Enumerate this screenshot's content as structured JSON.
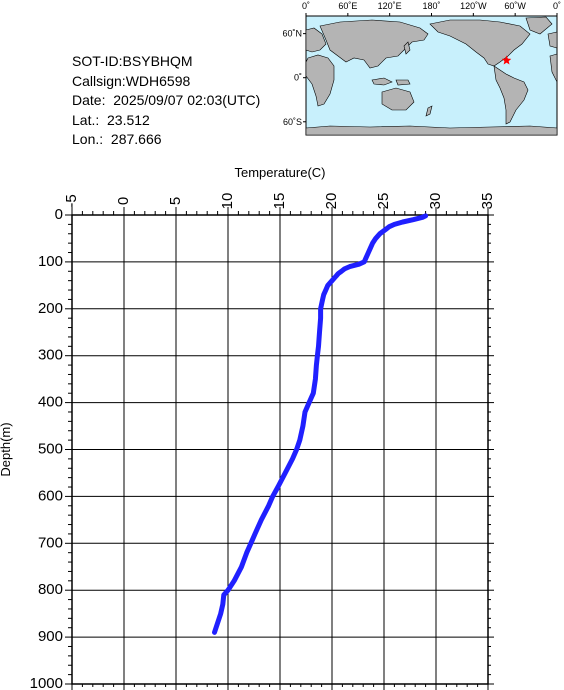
{
  "info": {
    "sot_id": "SOT-ID:BSYBHQM",
    "callsign": "Callsign:WDH6598",
    "date": "Date:  2025/09/07 02:03(UTC)",
    "lat": "Lat.:  23.512",
    "lon": "Lon.:  287.666"
  },
  "map": {
    "top_labels": [
      "0˚",
      "60˚E",
      "120˚E",
      "180˚",
      "120˚W",
      "60˚W",
      "0˚"
    ],
    "left_labels": [
      "60˚N",
      "0˚",
      "60˚S"
    ],
    "ocean_color": "#c8f0fc",
    "land_color": "#b4b4b4",
    "marker": {
      "name": "star-marker",
      "color": "#ff0000",
      "lat": 23.512,
      "lon": 287.666
    }
  },
  "chart_data": {
    "type": "line",
    "xlabel": "Temperature(C)",
    "ylabel": "Depth(m)",
    "xlim": [
      -5,
      35
    ],
    "ylim": [
      1000,
      0
    ],
    "x_ticks": [
      -5,
      0,
      5,
      10,
      15,
      20,
      25,
      30,
      35
    ],
    "y_ticks": [
      0,
      100,
      200,
      300,
      400,
      500,
      600,
      700,
      800,
      900,
      1000
    ],
    "x_tick_labels": [
      "-5",
      "0",
      "5",
      "10",
      "15",
      "20",
      "25",
      "30",
      "35"
    ],
    "y_tick_labels": [
      "0",
      "100",
      "200",
      "300",
      "400",
      "500",
      "600",
      "700",
      "800",
      "900",
      "1000"
    ],
    "grid": true,
    "line_color": "#2020ff",
    "series": [
      {
        "depth": [
          2,
          5,
          10,
          15,
          20,
          25,
          30,
          40,
          50,
          60,
          70,
          80,
          90,
          100,
          105,
          110,
          115,
          120,
          125,
          130,
          135,
          140,
          150,
          160,
          170,
          180,
          190,
          200,
          220,
          250,
          280,
          300,
          320,
          350,
          380,
          400,
          420,
          450,
          480,
          500,
          520,
          550,
          580,
          600,
          620,
          650,
          680,
          700,
          720,
          750,
          780,
          800,
          810,
          830,
          850,
          870,
          890
        ],
        "temperature": [
          29.0,
          28.7,
          27.8,
          26.8,
          26.0,
          25.5,
          25.2,
          24.6,
          24.2,
          23.9,
          23.7,
          23.5,
          23.3,
          23.1,
          22.6,
          21.7,
          21.2,
          20.9,
          20.6,
          20.4,
          20.2,
          20.0,
          19.6,
          19.4,
          19.2,
          19.1,
          19.0,
          18.9,
          18.9,
          18.8,
          18.7,
          18.6,
          18.5,
          18.4,
          18.2,
          17.8,
          17.4,
          17.2,
          16.9,
          16.6,
          16.2,
          15.5,
          14.8,
          14.3,
          13.9,
          13.2,
          12.6,
          12.2,
          11.8,
          11.3,
          10.6,
          10.0,
          9.6,
          9.5,
          9.3,
          9.0,
          8.7
        ]
      }
    ]
  }
}
